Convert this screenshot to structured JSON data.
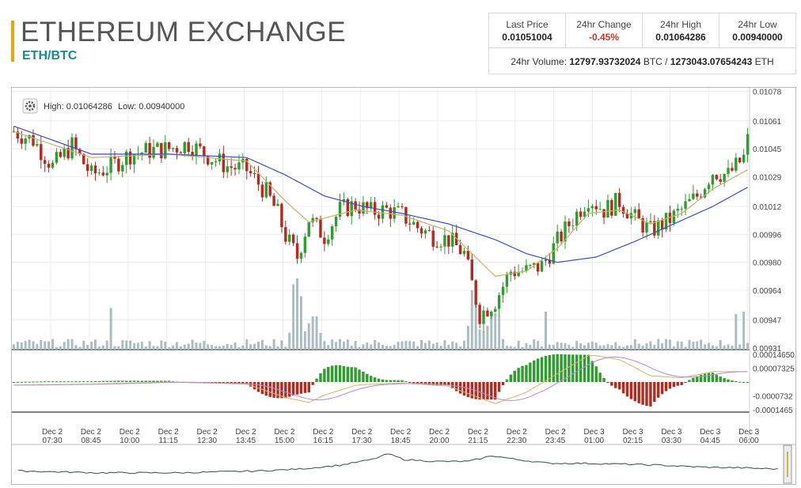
{
  "header": {
    "title": "ETHEREUM EXCHANGE",
    "pair": "ETH/BTC"
  },
  "stats": {
    "last_price_label": "Last Price",
    "last_price": "0.01051004",
    "change_label": "24hr Change",
    "change": "-0.45%",
    "high_label": "24hr High",
    "high": "0.01064286",
    "low_label": "24hr Low",
    "low": "0.00940000",
    "volume_label": "24hr Volume:",
    "volume_btc": "12797.93732024",
    "volume_btc_unit": "BTC",
    "volume_sep": "/",
    "volume_eth": "1273043.07654243",
    "volume_eth_unit": "ETH"
  },
  "chart_info": {
    "high_label": "High: 0.01064286",
    "low_label": "Low: 0.00940000"
  },
  "colors": {
    "up": "#2e9e2e",
    "down": "#b52a1e",
    "ema_fast": "#c8b06a",
    "ema_slow": "#3a4fbf",
    "volume": "#a9bcc0",
    "grid": "#ececec"
  },
  "chart_data": {
    "type": "candlestick",
    "ylim": [
      0.0093,
      0.0108
    ],
    "price_ticks": [
      "0.01078",
      "0.01061",
      "0.01045",
      "0.01029",
      "0.01012",
      "0.00996",
      "0.00980",
      "0.00964",
      "0.00947",
      "0.00931"
    ],
    "price_tick_values": [
      0.01078,
      0.01061,
      0.01045,
      0.01029,
      0.01012,
      0.00996,
      0.0098,
      0.00964,
      0.00947,
      0.00931
    ],
    "macd_ticks": [
      "0.00014650",
      "0.00007325",
      "-0.0000732",
      "-0.0001465"
    ],
    "macd_tick_values": [
      0.0001465,
      7.325e-05,
      -7.32e-05,
      -0.0001465
    ],
    "macd_ylim": [
      -0.00016,
      0.00016
    ],
    "x_ticks": [
      {
        "day": "Dec 2",
        "time": "07:30"
      },
      {
        "day": "Dec 2",
        "time": "08:45"
      },
      {
        "day": "Dec 2",
        "time": "10:00"
      },
      {
        "day": "Dec 2",
        "time": "11:15"
      },
      {
        "day": "Dec 2",
        "time": "12:30"
      },
      {
        "day": "Dec 2",
        "time": "13:45"
      },
      {
        "day": "Dec 2",
        "time": "15:00"
      },
      {
        "day": "Dec 2",
        "time": "16:15"
      },
      {
        "day": "Dec 2",
        "time": "17:30"
      },
      {
        "day": "Dec 2",
        "time": "18:45"
      },
      {
        "day": "Dec 2",
        "time": "20:00"
      },
      {
        "day": "Dec 2",
        "time": "21:15"
      },
      {
        "day": "Dec 2",
        "time": "22:30"
      },
      {
        "day": "Dec 2",
        "time": "23:45"
      },
      {
        "day": "Dec 3",
        "time": "01:00"
      },
      {
        "day": "Dec 3",
        "time": "02:15"
      },
      {
        "day": "Dec 3",
        "time": "03:30"
      },
      {
        "day": "Dec 3",
        "time": "04:45"
      },
      {
        "day": "Dec 3",
        "time": "06:00"
      }
    ],
    "close_anchors": [
      [
        0,
        0.01055
      ],
      [
        5,
        0.0105
      ],
      [
        10,
        0.01035
      ],
      [
        15,
        0.01047
      ],
      [
        20,
        0.0103
      ],
      [
        25,
        0.01035
      ],
      [
        30,
        0.01042
      ],
      [
        35,
        0.01044
      ],
      [
        40,
        0.01045
      ],
      [
        45,
        0.01048
      ],
      [
        50,
        0.01041
      ],
      [
        55,
        0.01035
      ],
      [
        60,
        0.01033
      ],
      [
        65,
        0.0102
      ],
      [
        68,
        0.01008
      ],
      [
        70,
        0.00995
      ],
      [
        73,
        0.00983
      ],
      [
        76,
        0.01005
      ],
      [
        80,
        0.00995
      ],
      [
        84,
        0.0101
      ],
      [
        88,
        0.01013
      ],
      [
        92,
        0.01009
      ],
      [
        96,
        0.0101
      ],
      [
        100,
        0.01007
      ],
      [
        104,
        0.01
      ],
      [
        108,
        0.00995
      ],
      [
        112,
        0.00993
      ],
      [
        116,
        0.00985
      ],
      [
        120,
        0.0095
      ],
      [
        124,
        0.00958
      ],
      [
        128,
        0.00975
      ],
      [
        132,
        0.00975
      ],
      [
        136,
        0.00978
      ],
      [
        140,
        0.00992
      ],
      [
        144,
        0.01005
      ],
      [
        148,
        0.01017
      ],
      [
        152,
        0.0101
      ],
      [
        156,
        0.01015
      ],
      [
        160,
        0.01005
      ],
      [
        164,
        0.00998
      ],
      [
        168,
        0.01003
      ],
      [
        172,
        0.0101
      ],
      [
        176,
        0.01018
      ],
      [
        180,
        0.01032
      ],
      [
        184,
        0.0103
      ],
      [
        188,
        0.0104
      ],
      [
        189,
        0.0105
      ]
    ],
    "ema_fast_anchors": [
      [
        0,
        0.01055
      ],
      [
        20,
        0.0104
      ],
      [
        40,
        0.01042
      ],
      [
        60,
        0.01038
      ],
      [
        70,
        0.01015
      ],
      [
        76,
        0.01003
      ],
      [
        88,
        0.0101
      ],
      [
        100,
        0.01007
      ],
      [
        112,
        0.00998
      ],
      [
        124,
        0.00972
      ],
      [
        132,
        0.00975
      ],
      [
        140,
        0.00988
      ],
      [
        148,
        0.01008
      ],
      [
        156,
        0.0101
      ],
      [
        164,
        0.01002
      ],
      [
        172,
        0.01008
      ],
      [
        180,
        0.01022
      ],
      [
        189,
        0.01033
      ]
    ],
    "ema_slow_anchors": [
      [
        0,
        0.01058
      ],
      [
        20,
        0.01042
      ],
      [
        40,
        0.01042
      ],
      [
        60,
        0.0104
      ],
      [
        70,
        0.0103
      ],
      [
        80,
        0.01018
      ],
      [
        90,
        0.01012
      ],
      [
        100,
        0.01008
      ],
      [
        112,
        0.01002
      ],
      [
        124,
        0.00993
      ],
      [
        132,
        0.00985
      ],
      [
        140,
        0.0098
      ],
      [
        150,
        0.00983
      ],
      [
        160,
        0.00992
      ],
      [
        170,
        0.01002
      ],
      [
        180,
        0.01012
      ],
      [
        189,
        0.01023
      ]
    ],
    "volume_spikes": [
      [
        72,
        0.55
      ],
      [
        73,
        0.6
      ],
      [
        74,
        0.45
      ],
      [
        118,
        0.5
      ],
      [
        119,
        0.5
      ],
      [
        137,
        0.32
      ],
      [
        25,
        0.35
      ],
      [
        186,
        0.3
      ],
      [
        188,
        0.32
      ]
    ],
    "navigator_anchors": [
      [
        0,
        0.2
      ],
      [
        20,
        0.15
      ],
      [
        40,
        0.15
      ],
      [
        60,
        0.2
      ],
      [
        70,
        0.25
      ],
      [
        80,
        0.35
      ],
      [
        88,
        0.5
      ],
      [
        92,
        0.65
      ],
      [
        96,
        0.5
      ],
      [
        104,
        0.45
      ],
      [
        112,
        0.45
      ],
      [
        118,
        0.6
      ],
      [
        124,
        0.5
      ],
      [
        132,
        0.4
      ],
      [
        140,
        0.4
      ],
      [
        150,
        0.38
      ],
      [
        160,
        0.35
      ],
      [
        170,
        0.3
      ],
      [
        180,
        0.28
      ],
      [
        189,
        0.25
      ]
    ]
  }
}
